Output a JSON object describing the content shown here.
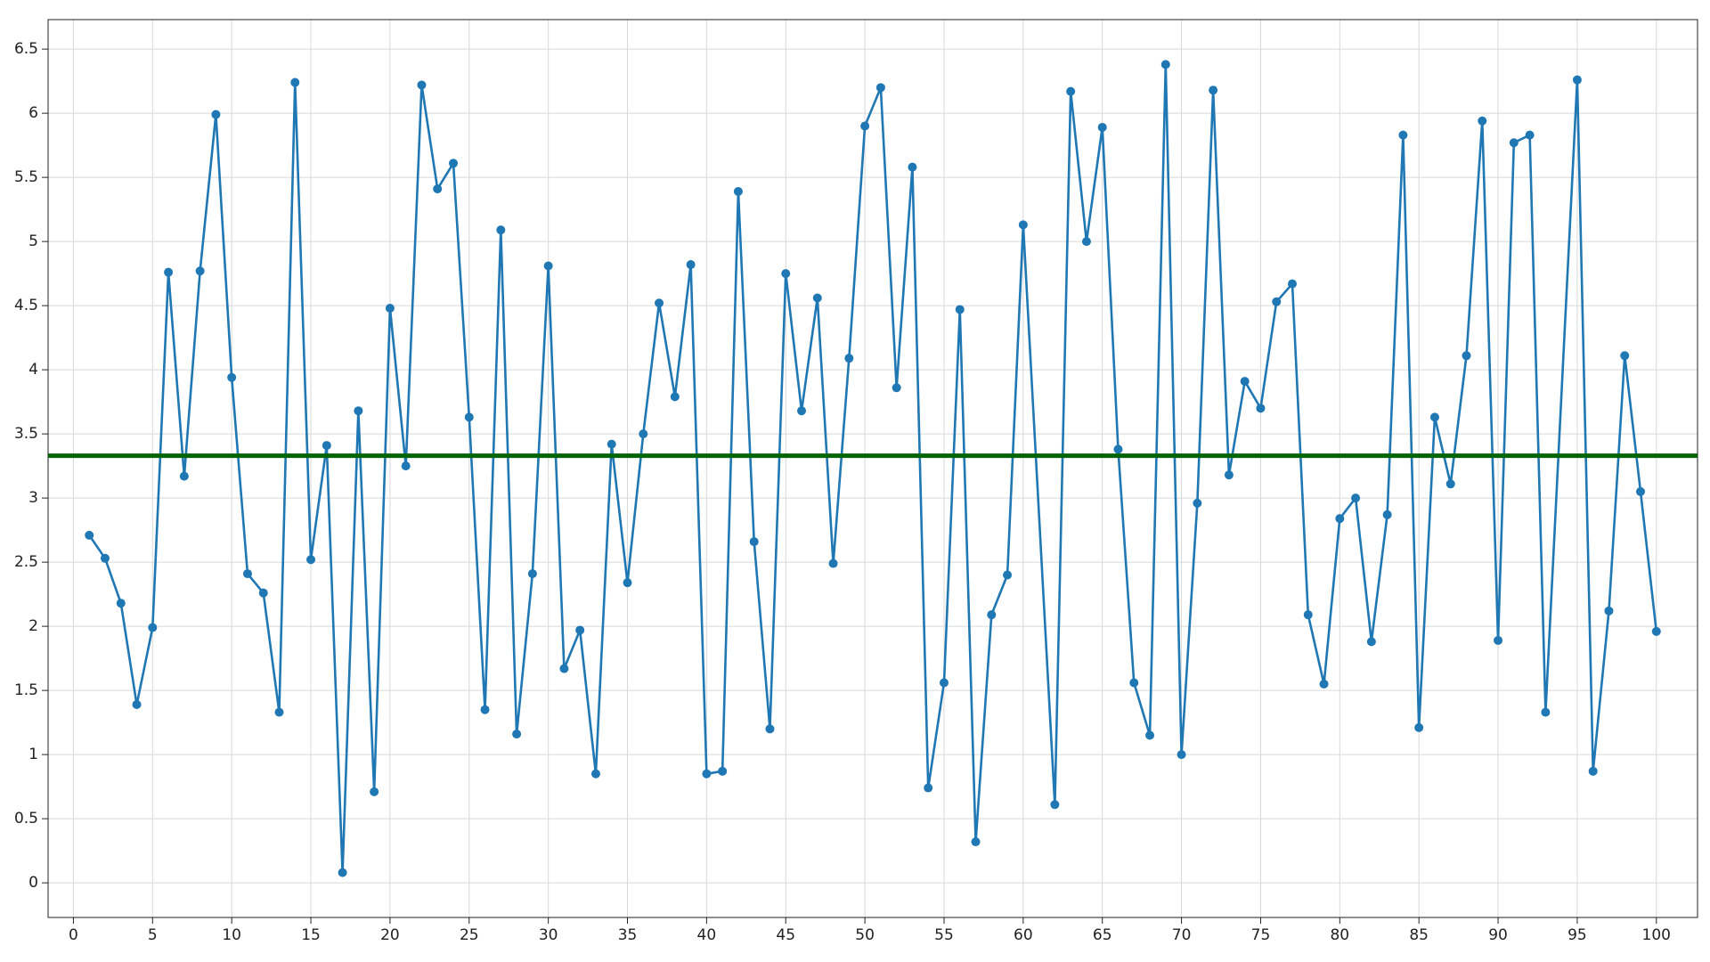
{
  "chart_data": {
    "type": "line",
    "x": [
      1,
      2,
      3,
      4,
      5,
      6,
      7,
      8,
      9,
      10,
      11,
      12,
      13,
      14,
      15,
      16,
      17,
      18,
      19,
      20,
      21,
      22,
      23,
      24,
      25,
      26,
      27,
      28,
      29,
      30,
      31,
      32,
      33,
      34,
      35,
      36,
      37,
      38,
      39,
      40,
      41,
      42,
      43,
      44,
      45,
      46,
      47,
      48,
      49,
      50,
      51,
      52,
      53,
      54,
      55,
      56,
      57,
      58,
      59,
      60,
      62,
      63,
      64,
      65,
      66,
      67,
      68,
      69,
      70,
      71,
      72,
      73,
      74,
      75,
      76,
      77,
      78,
      79,
      80,
      81,
      82,
      83,
      84,
      85,
      86,
      87,
      88,
      89,
      90,
      91,
      92,
      93,
      95,
      96,
      97,
      98,
      99,
      100
    ],
    "series": [
      {
        "color": "#1f77b4",
        "values": [
          2.71,
          2.53,
          2.18,
          1.39,
          1.99,
          4.76,
          3.17,
          4.77,
          5.99,
          3.94,
          2.41,
          2.26,
          1.33,
          6.24,
          2.52,
          3.41,
          0.08,
          3.68,
          0.71,
          4.48,
          3.25,
          6.22,
          5.41,
          5.61,
          3.63,
          1.35,
          5.09,
          1.16,
          2.41,
          4.81,
          1.67,
          1.97,
          0.85,
          3.42,
          2.34,
          3.5,
          4.52,
          3.79,
          4.82,
          0.85,
          0.87,
          5.39,
          2.66,
          1.2,
          4.75,
          3.68,
          4.56,
          2.49,
          4.09,
          5.9,
          6.2,
          3.86,
          5.58,
          0.74,
          1.56,
          4.47,
          0.32,
          2.09,
          2.4,
          5.13,
          0.61,
          6.17,
          5.0,
          5.89,
          3.38,
          1.56,
          1.15,
          6.38,
          1.0,
          2.96,
          6.18,
          3.18,
          3.91,
          3.7,
          4.53,
          4.67,
          2.09,
          1.55,
          2.84,
          3.0,
          1.88,
          2.87,
          5.83,
          1.21,
          3.63,
          3.11,
          4.11,
          5.94,
          1.89,
          5.77,
          5.83,
          1.33,
          6.26,
          0.87,
          2.12,
          4.11,
          3.05,
          1.96
        ]
      }
    ],
    "hline": {
      "value": 3.33,
      "color": "#006400"
    },
    "xlim": [
      -1.6,
      102.6
    ],
    "ylim": [
      -0.27,
      6.73
    ],
    "xticks": [
      0,
      5,
      10,
      15,
      20,
      25,
      30,
      35,
      40,
      45,
      50,
      55,
      60,
      65,
      70,
      75,
      80,
      85,
      90,
      95,
      100
    ],
    "yticks": [
      0,
      0.5,
      1,
      1.5,
      2,
      2.5,
      3,
      3.5,
      4,
      4.5,
      5,
      5.5,
      6,
      6.5
    ],
    "grid": true
  }
}
